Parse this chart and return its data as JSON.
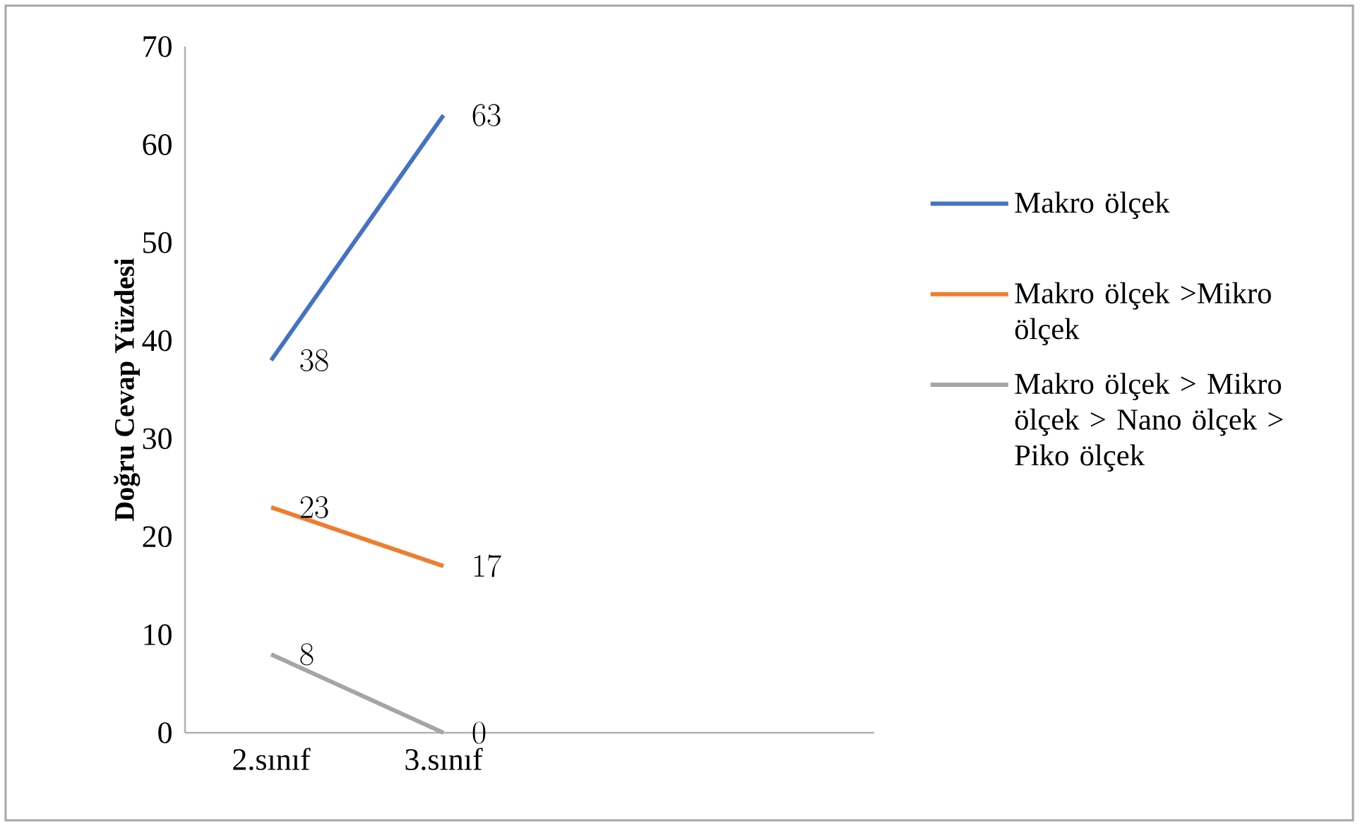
{
  "chart_data": {
    "type": "line",
    "ylabel": "Doğru Cevap Yüzdesi",
    "categories": [
      "2.sınıf",
      "3.sınıf",
      null,
      null
    ],
    "series": [
      {
        "name": "Makro ölçek",
        "color": "#4472c4",
        "values": [
          38,
          63,
          null,
          null
        ]
      },
      {
        "name": "Makro ölçek >Mikro ölçek",
        "color": "#ed7d31",
        "values": [
          23,
          17,
          null,
          null
        ]
      },
      {
        "name": "Makro ölçek > Mikro ölçek > Nano ölçek > Piko ölçek",
        "color": "#a5a5a5",
        "values": [
          8,
          0,
          null,
          null
        ]
      }
    ],
    "ylim": [
      0,
      70
    ],
    "yticks": [
      0,
      10,
      20,
      30,
      40,
      50,
      60,
      70
    ],
    "grid": false,
    "legend": "right",
    "marker": "none",
    "line_style": "solid",
    "data_labels": true
  }
}
